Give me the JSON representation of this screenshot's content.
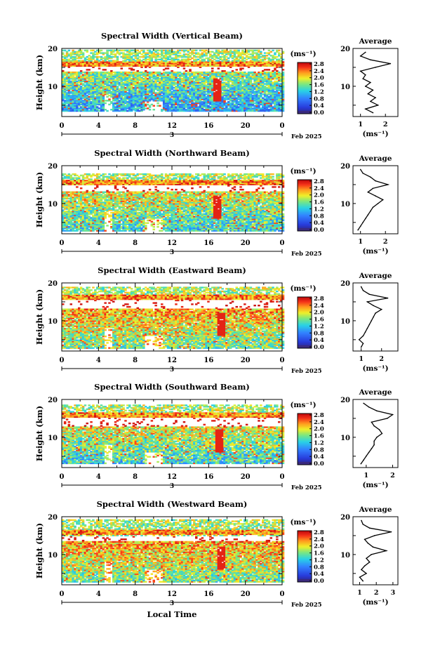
{
  "figure": {
    "date_label": "Feb 2025",
    "day_label": "3",
    "xlabel": "Local Time",
    "x_ticks": [
      "0",
      "4",
      "8",
      "12",
      "16",
      "20",
      "0"
    ],
    "ylabel": "Height (km)",
    "y_ticks": [
      "10",
      "20"
    ],
    "colorbar_unit": "(ms⁻¹)",
    "colorbar_ticks": [
      "0.0",
      "0.4",
      "0.8",
      "1.2",
      "1.6",
      "2.0",
      "2.4",
      "2.8"
    ],
    "average_title": "Average",
    "average_unit": "(ms⁻¹)",
    "colors": {
      "low": "#3a2a80",
      "high": "#d01010",
      "line": "#000000"
    }
  },
  "chart_data": [
    {
      "type": "heatmap",
      "title": "Spectral Width (Vertical Beam)",
      "xlabel": "Local Time",
      "ylabel": "Height (km)",
      "xlim": [
        0,
        24
      ],
      "ylim": [
        2,
        20
      ],
      "colorbar_range": [
        0.0,
        2.8
      ],
      "features": {
        "bottom": 3.2,
        "top": 19.5,
        "gap_low": 13.6,
        "gap_high": 15.0,
        "layer_height": 15.6,
        "base_level": 0.35,
        "spike_time": 16.9
      },
      "average": {
        "xlim": [
          0.7,
          2.5
        ],
        "x_ticks": [
          "1",
          "2"
        ],
        "height": [
          3,
          4,
          5,
          6,
          7,
          8,
          9,
          10,
          11,
          12,
          13,
          14,
          15,
          16,
          17,
          18,
          19
        ],
        "value": [
          1.5,
          1.2,
          1.7,
          1.4,
          1.6,
          1.3,
          1.5,
          1.2,
          1.4,
          1.1,
          1.2,
          1.0,
          1.6,
          2.2,
          1.4,
          1.0,
          1.2
        ]
      }
    },
    {
      "type": "heatmap",
      "title": "Spectral Width (Northward Beam)",
      "xlabel": "Local Time",
      "ylabel": "Height (km)",
      "xlim": [
        0,
        24
      ],
      "ylim": [
        2,
        20
      ],
      "colorbar_range": [
        0.0,
        2.8
      ],
      "features": {
        "bottom": 2.5,
        "top": 17.8,
        "gap_low": 13.0,
        "gap_high": 14.8,
        "layer_height": 15.5,
        "base_level": 0.45,
        "spike_time": 16.8
      },
      "average": {
        "xlim": [
          0.7,
          2.5
        ],
        "x_ticks": [
          "1",
          "2"
        ],
        "height": [
          3,
          4,
          5,
          6,
          7,
          8,
          9,
          10,
          11,
          12,
          13,
          14,
          15,
          16,
          17,
          18,
          19
        ],
        "value": [
          0.9,
          1.0,
          1.1,
          1.2,
          1.3,
          1.4,
          1.5,
          1.7,
          1.9,
          1.6,
          1.3,
          1.5,
          2.1,
          1.6,
          1.4,
          1.1,
          1.0
        ]
      }
    },
    {
      "type": "heatmap",
      "title": "Spectral Width (Eastward Beam)",
      "xlabel": "Local Time",
      "ylabel": "Height (km)",
      "xlim": [
        0,
        24
      ],
      "ylim": [
        2,
        20
      ],
      "colorbar_range": [
        0.0,
        2.8
      ],
      "features": {
        "bottom": 2.4,
        "top": 18.8,
        "gap_low": 13.2,
        "gap_high": 15.3,
        "layer_height": 16.2,
        "base_level": 0.55,
        "spike_time": 17.2
      },
      "average": {
        "xlim": [
          0.6,
          2.8
        ],
        "x_ticks": [
          "1",
          "2"
        ],
        "height": [
          3,
          4,
          5,
          6,
          7,
          8,
          9,
          10,
          11,
          12,
          13,
          14,
          15,
          16,
          17,
          18,
          19
        ],
        "value": [
          1.0,
          1.1,
          0.9,
          1.1,
          1.2,
          1.3,
          1.4,
          1.5,
          1.6,
          1.7,
          2.0,
          1.6,
          1.3,
          2.3,
          1.4,
          1.1,
          1.0
        ]
      }
    },
    {
      "type": "heatmap",
      "title": "Spectral Width (Southward Beam)",
      "xlabel": "Local Time",
      "ylabel": "Height (km)",
      "xlim": [
        0,
        24
      ],
      "ylim": [
        2,
        20
      ],
      "colorbar_range": [
        0.0,
        2.8
      ],
      "features": {
        "bottom": 2.8,
        "top": 18.4,
        "gap_low": 12.6,
        "gap_high": 15.0,
        "layer_height": 15.8,
        "base_level": 0.45,
        "spike_time": 17.0
      },
      "average": {
        "xlim": [
          0.5,
          2.2
        ],
        "x_ticks": [
          "1",
          "2"
        ],
        "height": [
          3,
          4,
          5,
          6,
          7,
          8,
          9,
          10,
          11,
          12,
          13,
          14,
          15,
          16,
          17,
          18,
          19
        ],
        "value": [
          0.8,
          0.9,
          1.0,
          1.1,
          1.2,
          1.3,
          1.3,
          1.4,
          1.6,
          1.5,
          1.3,
          1.2,
          1.8,
          2.0,
          1.4,
          1.1,
          0.9
        ]
      }
    },
    {
      "type": "heatmap",
      "title": "Spectral Width (Westward Beam)",
      "xlabel": "Local Time",
      "ylabel": "Height (km)",
      "xlim": [
        0,
        24
      ],
      "ylim": [
        2,
        20
      ],
      "colorbar_range": [
        0.0,
        2.8
      ],
      "features": {
        "bottom": 2.4,
        "top": 19.2,
        "gap_low": 13.5,
        "gap_high": 14.8,
        "layer_height": 15.8,
        "base_level": 0.55,
        "spike_time": 17.3
      },
      "average": {
        "xlim": [
          0.6,
          3.3
        ],
        "x_ticks": [
          "1",
          "2",
          "3"
        ],
        "height": [
          3,
          4,
          5,
          6,
          7,
          8,
          9,
          10,
          11,
          12,
          13,
          14,
          15,
          16,
          17,
          18,
          19
        ],
        "value": [
          1.2,
          1.0,
          1.4,
          1.1,
          1.3,
          1.6,
          1.4,
          1.7,
          2.6,
          1.8,
          1.5,
          1.3,
          1.9,
          2.9,
          1.6,
          1.2,
          1.1
        ]
      }
    }
  ]
}
